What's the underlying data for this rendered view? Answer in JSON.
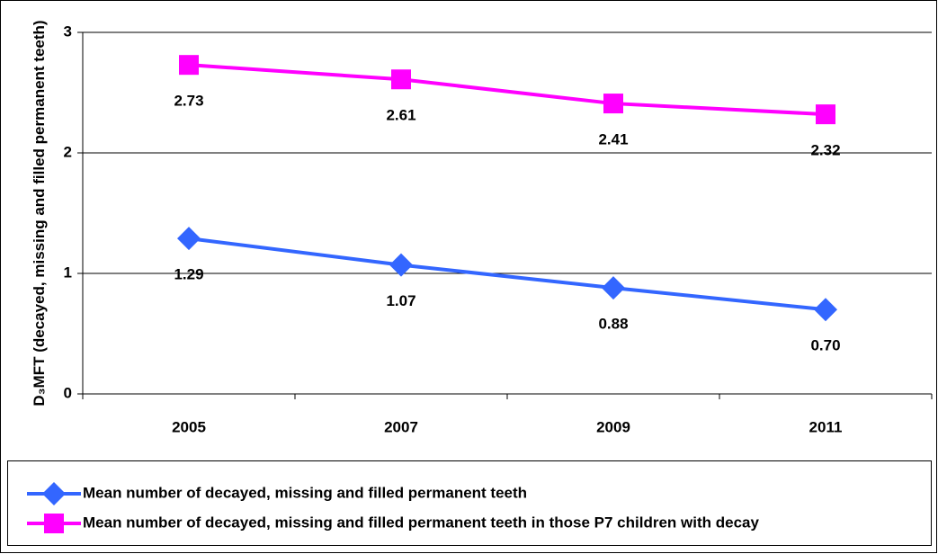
{
  "chart_data": {
    "type": "line",
    "y_label": "D₃MFT (decayed, missing and filled permanent teeth)",
    "categories": [
      "2005",
      "2007",
      "2009",
      "2011"
    ],
    "ylim": [
      0,
      3
    ],
    "yticks": [
      0,
      1,
      2,
      3
    ],
    "grid": true,
    "series": [
      {
        "name": "Mean number of decayed, missing and filled permanent teeth",
        "color": "#3366ff",
        "marker": "diamond",
        "values": [
          1.29,
          1.07,
          0.88,
          0.7
        ],
        "value_labels": [
          "1.29",
          "1.07",
          "0.88",
          "0.70"
        ]
      },
      {
        "name": "Mean number of decayed, missing and filled permanent teeth in those P7 children with decay",
        "color": "#ff00ff",
        "marker": "square",
        "values": [
          2.73,
          2.61,
          2.41,
          2.32
        ]
      }
    ]
  }
}
